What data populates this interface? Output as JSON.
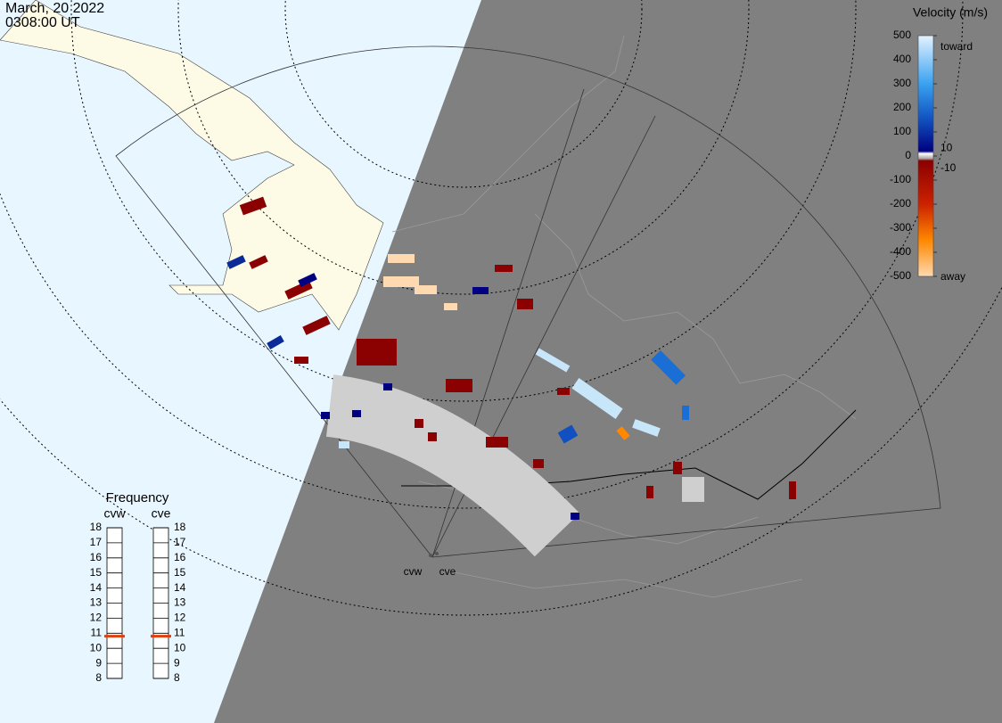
{
  "header": {
    "date": "March, 20 2022",
    "time": "0308:00 UT"
  },
  "colorbar": {
    "title": "Velocity (m/s)",
    "ylim": [
      -500,
      500
    ],
    "yticks": [
      500,
      400,
      300,
      200,
      100,
      0,
      -100,
      -200,
      -300,
      -400,
      -500
    ],
    "top_label": "toward",
    "bottom_label": "away",
    "inner_ticks": [
      10,
      -10
    ]
  },
  "frequency": {
    "title": "Frequency",
    "ylim": [
      8,
      18
    ],
    "yticks": [
      8,
      9,
      10,
      11,
      12,
      13,
      14,
      15,
      16,
      17,
      18
    ],
    "radars": [
      {
        "name": "cvw",
        "value": 10.8
      },
      {
        "name": "cve",
        "value": 10.8
      }
    ]
  },
  "radar_labels": [
    "cvw",
    "cve"
  ]
}
